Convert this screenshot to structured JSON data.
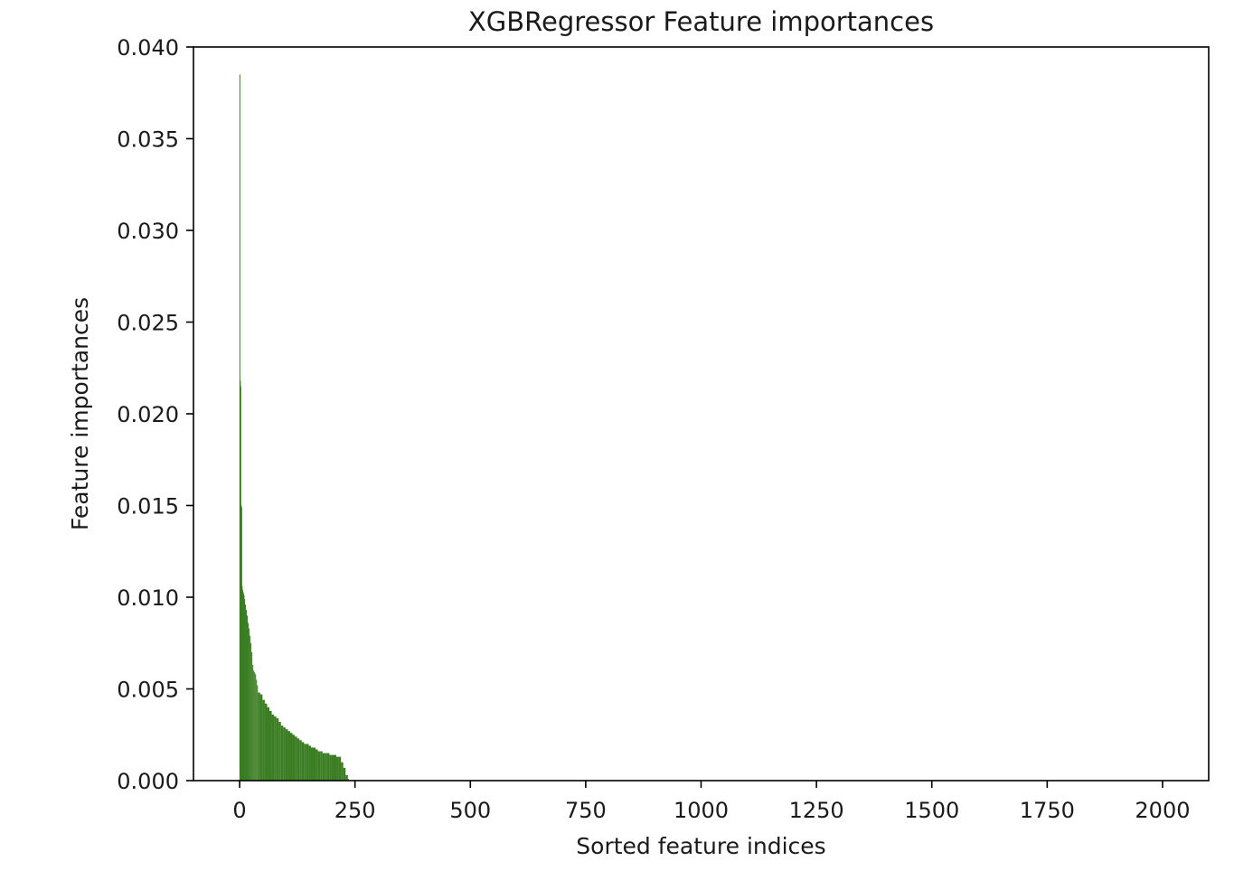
{
  "chart_data": {
    "type": "bar",
    "title": "XGBRegressor Feature importances",
    "xlabel": "Sorted feature indices",
    "ylabel": "Feature importances",
    "xlim": [
      -100,
      2100
    ],
    "ylim": [
      0,
      0.04
    ],
    "x_ticks": [
      0,
      250,
      500,
      750,
      1000,
      1250,
      1500,
      1750,
      2000
    ],
    "x_tick_labels": [
      "0",
      "250",
      "500",
      "750",
      "1000",
      "1250",
      "1500",
      "1750",
      "2000"
    ],
    "y_ticks": [
      0,
      0.005,
      0.01,
      0.015,
      0.02,
      0.025,
      0.03,
      0.035,
      0.04
    ],
    "y_tick_labels": [
      "0.000",
      "0.005",
      "0.010",
      "0.015",
      "0.020",
      "0.025",
      "0.030",
      "0.035",
      "0.040"
    ],
    "bar_color": "#3a7d22",
    "grid": false,
    "legend": "none",
    "series": [
      {
        "x": [
          0,
          1,
          2,
          3,
          4,
          5,
          6,
          7,
          8,
          9,
          10,
          12,
          14,
          16,
          18,
          20,
          22,
          24,
          26,
          28,
          30,
          32,
          34,
          36,
          38,
          40,
          45,
          50,
          55,
          60,
          65,
          70,
          75,
          80,
          85,
          90,
          95,
          100,
          105,
          110,
          115,
          120,
          125,
          130,
          135,
          140,
          145,
          150,
          155,
          160,
          165,
          170,
          175,
          180,
          185,
          190,
          195,
          200,
          205,
          210,
          215,
          220,
          225,
          230,
          235,
          2000
        ],
        "values": [
          0.0385,
          0.0218,
          0.0215,
          0.015,
          0.0149,
          0.0106,
          0.0104,
          0.0103,
          0.0102,
          0.0101,
          0.0099,
          0.0096,
          0.0093,
          0.009,
          0.0086,
          0.0083,
          0.0079,
          0.0075,
          0.007,
          0.0063,
          0.006,
          0.0059,
          0.0058,
          0.0055,
          0.0052,
          0.0048,
          0.0047,
          0.0044,
          0.0042,
          0.004,
          0.0038,
          0.0036,
          0.0035,
          0.0034,
          0.0032,
          0.003,
          0.0029,
          0.0028,
          0.0027,
          0.0026,
          0.0025,
          0.0024,
          0.0023,
          0.0022,
          0.0021,
          0.002,
          0.002,
          0.0019,
          0.0018,
          0.0018,
          0.0017,
          0.0016,
          0.0016,
          0.0015,
          0.0015,
          0.0015,
          0.0014,
          0.0014,
          0.0014,
          0.0013,
          0.0013,
          0.001,
          0.0007,
          0.0003,
          0.0001,
          0.0
        ]
      }
    ]
  }
}
